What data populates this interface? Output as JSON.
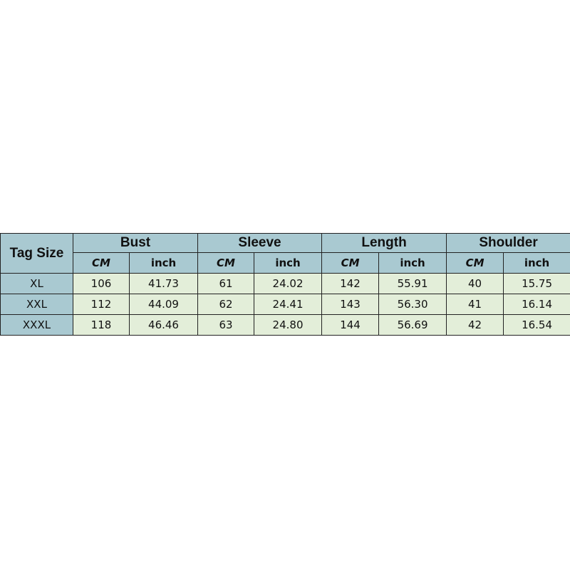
{
  "table": {
    "tag_header": "Tag Size",
    "groups": [
      "Bust",
      "Sleeve",
      "Length",
      "Shoulder"
    ],
    "units": [
      "CM",
      "inch"
    ],
    "rows": [
      {
        "size": "XL",
        "values": [
          "106",
          "41.73",
          "61",
          "24.02",
          "142",
          "55.91",
          "40",
          "15.75"
        ]
      },
      {
        "size": "XXL",
        "values": [
          "112",
          "44.09",
          "62",
          "24.41",
          "143",
          "56.30",
          "41",
          "16.14"
        ]
      },
      {
        "size": "XXXL",
        "values": [
          "118",
          "46.46",
          "63",
          "24.80",
          "144",
          "56.69",
          "42",
          "16.54"
        ]
      }
    ],
    "colors": {
      "header": "#a9c9d1",
      "cell": "#e3eed9"
    }
  }
}
